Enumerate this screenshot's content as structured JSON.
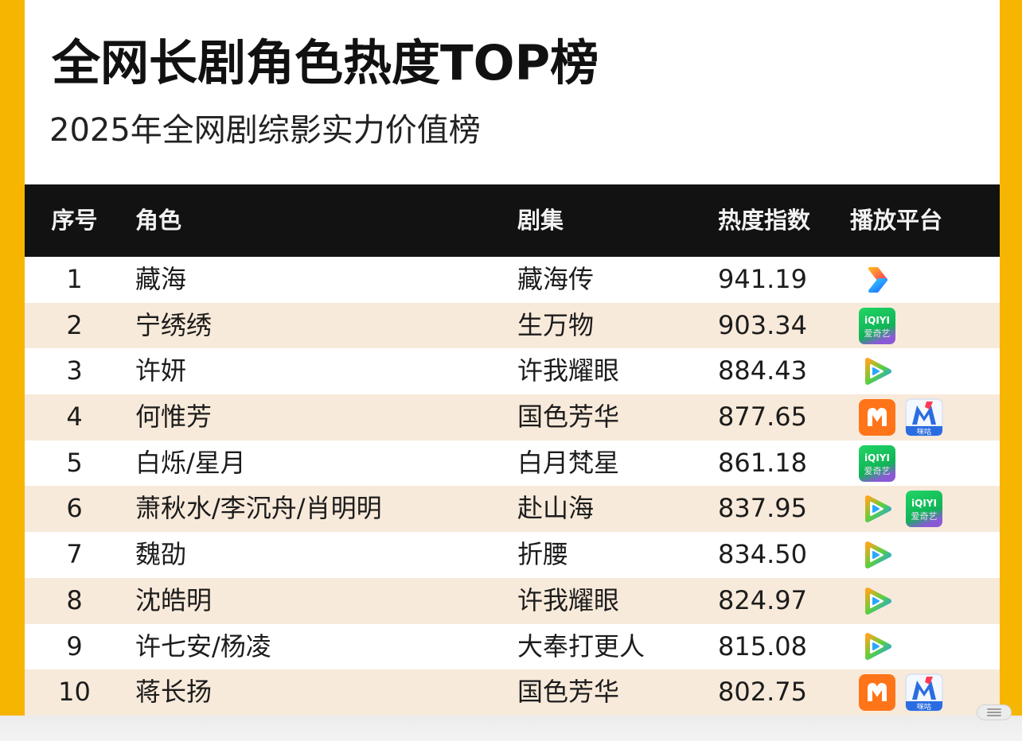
{
  "chart_data": {
    "type": "table",
    "title": "全网长剧角色热度TOP榜",
    "subtitle": "2025年全网剧综影实力价值榜",
    "columns": [
      "序号",
      "角色",
      "剧集",
      "热度指数",
      "播放平台"
    ],
    "rows": [
      {
        "rank": 1,
        "role": "藏海",
        "drama": "藏海传",
        "heat_index": "941.19",
        "platforms": [
          "youku-icon"
        ]
      },
      {
        "rank": 2,
        "role": "宁绣绣",
        "drama": "生万物",
        "heat_index": "903.34",
        "platforms": [
          "iqiyi-icon"
        ]
      },
      {
        "rank": 3,
        "role": "许妍",
        "drama": "许我耀眼",
        "heat_index": "884.43",
        "platforms": [
          "tencent-video-icon"
        ]
      },
      {
        "rank": 4,
        "role": "何惟芳",
        "drama": "国色芳华",
        "heat_index": "877.65",
        "platforms": [
          "mango-tv-icon",
          "migu-icon"
        ]
      },
      {
        "rank": 5,
        "role": "白烁/星月",
        "drama": "白月梵星",
        "heat_index": "861.18",
        "platforms": [
          "iqiyi-icon"
        ]
      },
      {
        "rank": 6,
        "role": "萧秋水/李沉舟/肖明明",
        "drama": "赴山海",
        "heat_index": "837.95",
        "platforms": [
          "tencent-video-icon",
          "iqiyi-icon"
        ]
      },
      {
        "rank": 7,
        "role": "魏劭",
        "drama": "折腰",
        "heat_index": "834.50",
        "platforms": [
          "tencent-video-icon"
        ]
      },
      {
        "rank": 8,
        "role": "沈皓明",
        "drama": "许我耀眼",
        "heat_index": "824.97",
        "platforms": [
          "tencent-video-icon"
        ]
      },
      {
        "rank": 9,
        "role": "许七安/杨凌",
        "drama": "大奉打更人",
        "heat_index": "815.08",
        "platforms": [
          "tencent-video-icon"
        ]
      },
      {
        "rank": 10,
        "role": "蒋长扬",
        "drama": "国色芳华",
        "heat_index": "802.75",
        "platforms": [
          "mango-tv-icon",
          "migu-icon"
        ]
      }
    ]
  },
  "logos": {
    "iqiyi": {
      "latin": "iQIYI",
      "cn": "爱奇艺"
    },
    "migu": {
      "cn": "咪咕"
    }
  },
  "bottom_bar": {
    "icon": "menu-icon"
  },
  "colors": {
    "frame": "#f6b500",
    "header_bg": "#121212",
    "header_text": "#f2f2f2",
    "row": "#ffffff",
    "row_alt": "#f8eada",
    "text": "#1c1c1c",
    "title": "#111111",
    "subtitle": "#222222",
    "bottom_bar": "#f3f3f3"
  }
}
